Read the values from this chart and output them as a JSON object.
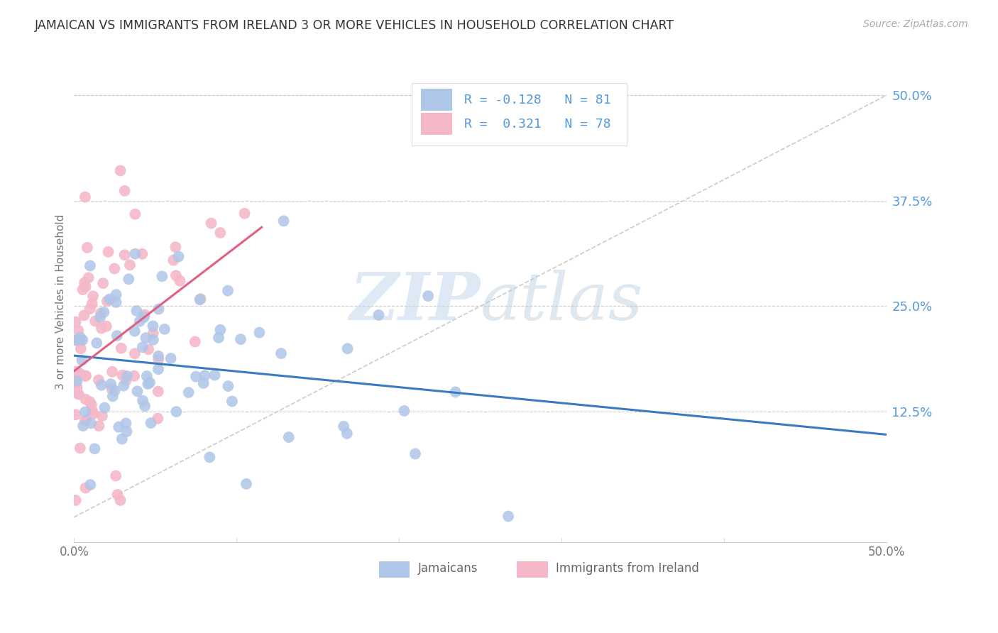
{
  "title": "JAMAICAN VS IMMIGRANTS FROM IRELAND 3 OR MORE VEHICLES IN HOUSEHOLD CORRELATION CHART",
  "source": "Source: ZipAtlas.com",
  "ylabel": "3 or more Vehicles in Household",
  "ytick_labels": [
    "12.5%",
    "25.0%",
    "37.5%",
    "50.0%"
  ],
  "ytick_values": [
    0.125,
    0.25,
    0.375,
    0.5
  ],
  "xlim": [
    0.0,
    0.5
  ],
  "ylim": [
    -0.03,
    0.54
  ],
  "jamaican_color": "#aec6e8",
  "ireland_color": "#f4b8c8",
  "jamaican_line_color": "#3a7abf",
  "ireland_line_color": "#e06080",
  "watermark_zip": "ZIP",
  "watermark_atlas": "atlas",
  "watermark_color": "#c8d8ee",
  "legend_text_color": "#5599dd",
  "R_jamaican": -0.128,
  "N_jamaican": 81,
  "R_ireland": 0.321,
  "N_ireland": 78
}
